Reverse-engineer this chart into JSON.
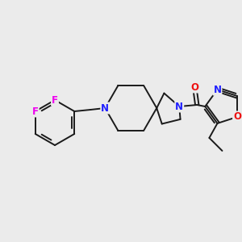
{
  "background_color": "#ebebeb",
  "bond_color": "#1a1a1a",
  "atom_colors": {
    "N": "#2020ff",
    "O": "#ee1111",
    "F": "#ee00ee",
    "C": "#1a1a1a"
  },
  "figsize": [
    3.0,
    3.0
  ],
  "dpi": 100,
  "lw": 1.4,
  "fs": 8.5
}
